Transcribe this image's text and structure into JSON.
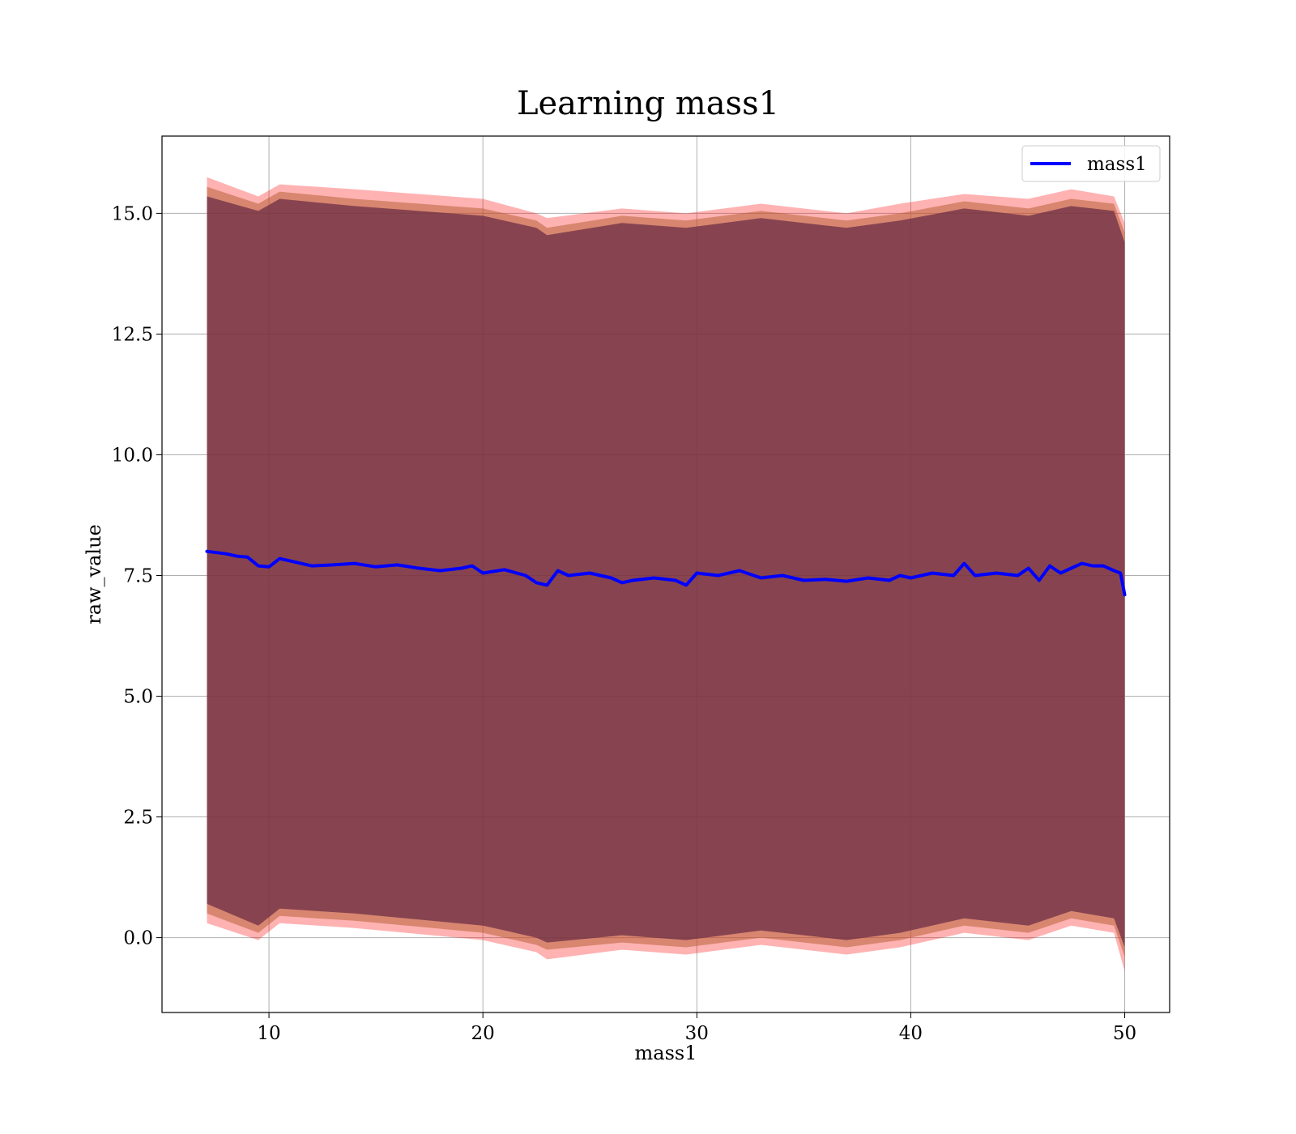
{
  "chart_data": {
    "type": "line",
    "title": "Learning mass1",
    "xlabel": "mass1",
    "ylabel": "raw_value",
    "xlim": [
      5,
      52.1
    ],
    "ylim": [
      -1.55,
      16.6
    ],
    "xticks": [
      10,
      20,
      30,
      40,
      50
    ],
    "yticks": [
      0.0,
      2.5,
      5.0,
      7.5,
      10.0,
      12.5,
      15.0
    ],
    "xtick_labels": [
      "10",
      "20",
      "30",
      "40",
      "50"
    ],
    "ytick_labels": [
      "0.0",
      "2.5",
      "5.0",
      "7.5",
      "10.0",
      "12.5",
      "15.0"
    ],
    "grid": true,
    "legend_position": "top-right",
    "series": [
      {
        "name": "mass1",
        "color": "#0000ff",
        "x": [
          7.1,
          8.0,
          8.5,
          9.0,
          9.5,
          10.0,
          10.5,
          11.0,
          12.0,
          13.0,
          14.0,
          15.0,
          16.0,
          17.0,
          18.0,
          19.0,
          19.5,
          20.0,
          21.0,
          22.0,
          22.5,
          23.0,
          23.5,
          24.0,
          25.0,
          26.0,
          26.5,
          27.0,
          28.0,
          29.0,
          29.5,
          30.0,
          31.0,
          32.0,
          33.0,
          34.0,
          35.0,
          36.0,
          37.0,
          38.0,
          39.0,
          39.5,
          40.0,
          41.0,
          42.0,
          42.5,
          43.0,
          44.0,
          45.0,
          45.5,
          46.0,
          46.5,
          47.0,
          47.5,
          48.0,
          48.5,
          49.0,
          49.5,
          49.8,
          50.0
        ],
        "y": [
          8.0,
          7.95,
          7.9,
          7.88,
          7.7,
          7.68,
          7.85,
          7.8,
          7.7,
          7.72,
          7.75,
          7.68,
          7.72,
          7.65,
          7.6,
          7.65,
          7.7,
          7.55,
          7.62,
          7.5,
          7.35,
          7.3,
          7.6,
          7.5,
          7.55,
          7.45,
          7.35,
          7.4,
          7.45,
          7.4,
          7.3,
          7.55,
          7.5,
          7.6,
          7.45,
          7.5,
          7.4,
          7.42,
          7.38,
          7.45,
          7.4,
          7.5,
          7.45,
          7.55,
          7.5,
          7.75,
          7.5,
          7.55,
          7.5,
          7.65,
          7.4,
          7.7,
          7.55,
          7.65,
          7.75,
          7.7,
          7.7,
          7.6,
          7.55,
          7.1
        ]
      }
    ],
    "bands": [
      {
        "color": "#ff0000",
        "opacity": 0.3,
        "x": [
          7.1,
          9.5,
          10.5,
          14.0,
          20.0,
          22.5,
          23.0,
          26.5,
          29.5,
          33.0,
          37.0,
          39.5,
          42.5,
          45.5,
          47.5,
          49.5,
          50.0
        ],
        "upper": [
          15.75,
          15.35,
          15.6,
          15.5,
          15.3,
          15.0,
          14.9,
          15.1,
          15.0,
          15.2,
          15.0,
          15.2,
          15.4,
          15.3,
          15.5,
          15.35,
          14.8
        ],
        "lower": [
          0.3,
          -0.05,
          0.3,
          0.2,
          -0.05,
          -0.3,
          -0.45,
          -0.25,
          -0.35,
          -0.15,
          -0.35,
          -0.2,
          0.1,
          -0.05,
          0.25,
          0.1,
          -0.7
        ]
      },
      {
        "color": "#b45a2d",
        "opacity": 0.5,
        "x": [
          7.1,
          9.5,
          10.5,
          14.0,
          20.0,
          22.5,
          23.0,
          26.5,
          29.5,
          33.0,
          37.0,
          39.5,
          42.5,
          45.5,
          47.5,
          49.5,
          50.0
        ],
        "upper": [
          15.55,
          15.2,
          15.45,
          15.3,
          15.1,
          14.85,
          14.7,
          14.95,
          14.85,
          15.05,
          14.85,
          15.0,
          15.25,
          15.1,
          15.3,
          15.2,
          14.6
        ],
        "lower": [
          0.5,
          0.1,
          0.45,
          0.35,
          0.1,
          -0.15,
          -0.25,
          -0.1,
          -0.2,
          0.0,
          -0.2,
          -0.05,
          0.25,
          0.1,
          0.4,
          0.25,
          -0.4
        ]
      },
      {
        "color": "#6b2d45",
        "opacity": 0.75,
        "x": [
          7.1,
          9.5,
          10.5,
          14.0,
          20.0,
          22.5,
          23.0,
          26.5,
          29.5,
          33.0,
          37.0,
          39.5,
          42.5,
          45.5,
          47.5,
          49.5,
          50.0
        ],
        "upper": [
          15.35,
          15.05,
          15.3,
          15.15,
          14.95,
          14.7,
          14.55,
          14.8,
          14.7,
          14.9,
          14.7,
          14.85,
          15.1,
          14.95,
          15.15,
          15.05,
          14.4
        ],
        "lower": [
          0.7,
          0.25,
          0.6,
          0.5,
          0.25,
          0.0,
          -0.1,
          0.05,
          -0.05,
          0.15,
          -0.05,
          0.1,
          0.4,
          0.25,
          0.55,
          0.4,
          -0.2
        ]
      }
    ]
  }
}
